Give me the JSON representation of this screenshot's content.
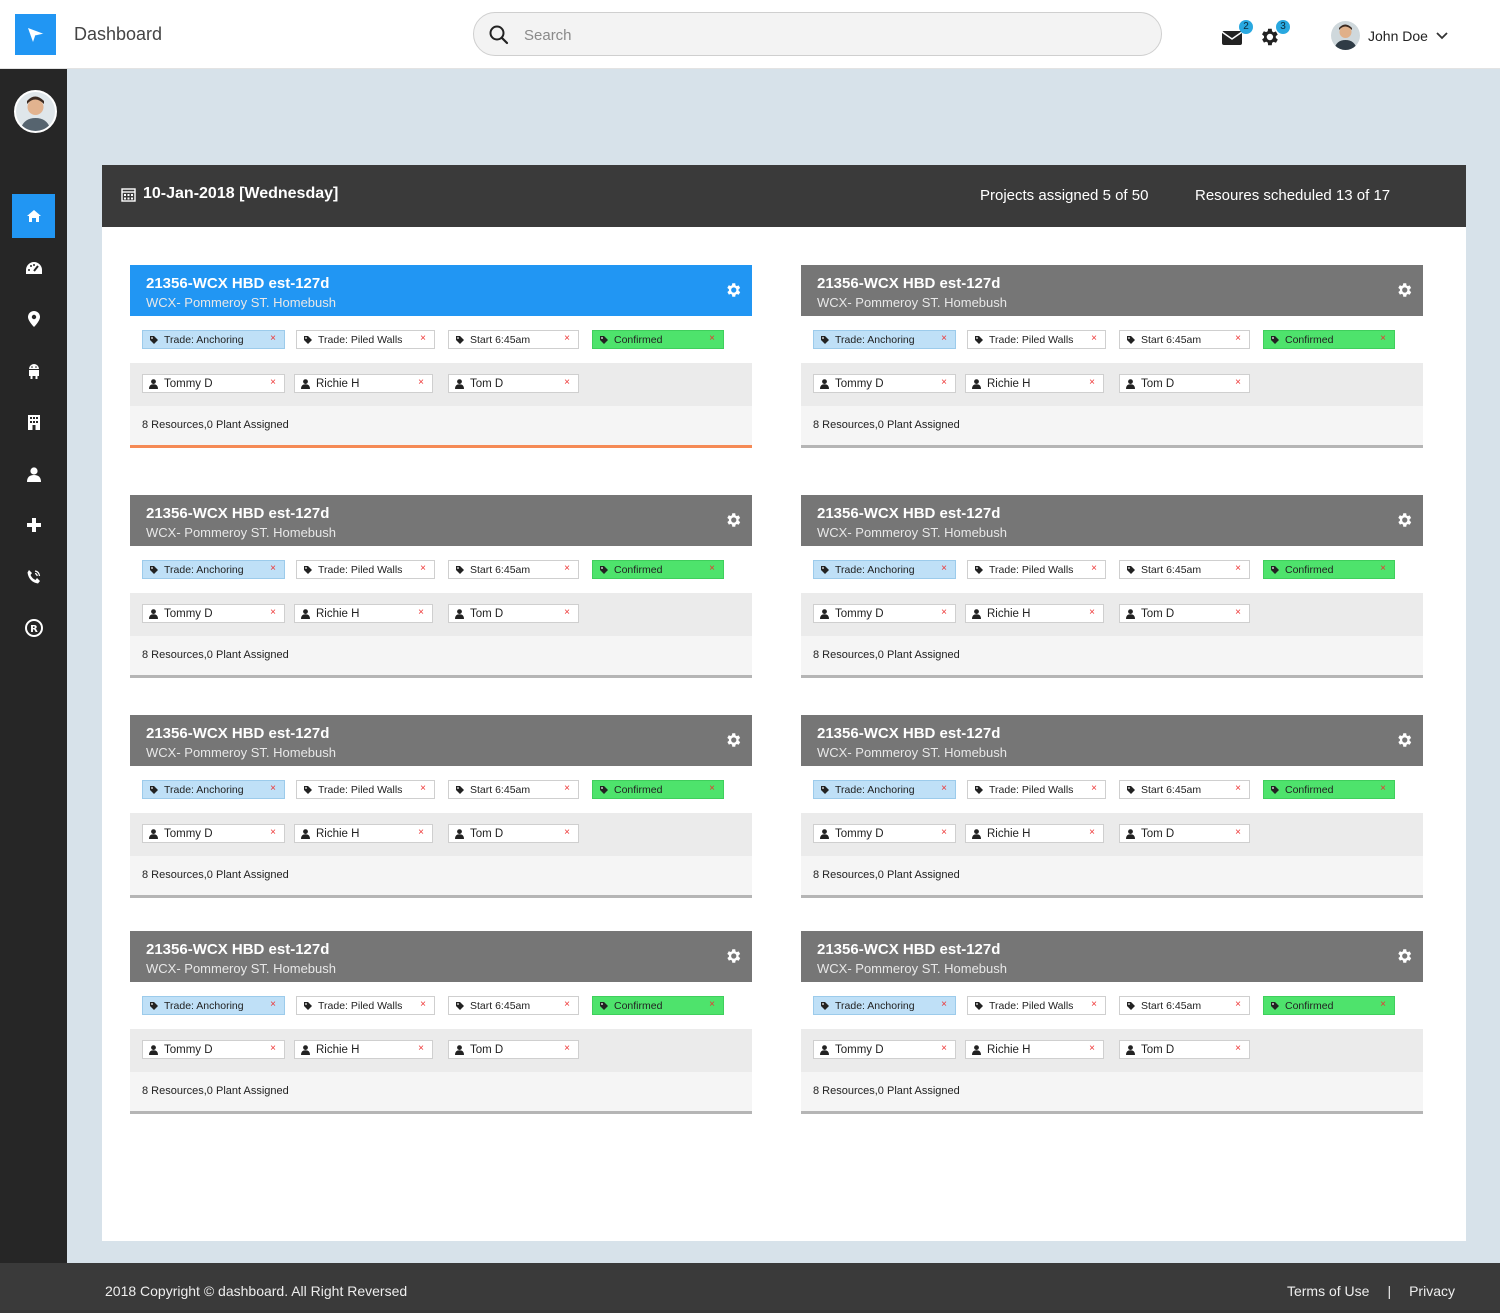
{
  "app": {
    "title": "Dashboard"
  },
  "search": {
    "placeholder": "Search"
  },
  "notifications": {
    "messages_count": "2",
    "settings_count": "3"
  },
  "user": {
    "name": "John Doe"
  },
  "sidebar": {
    "items": [
      {
        "name": "home",
        "icon": "home-icon",
        "active": true
      },
      {
        "name": "dashboard",
        "icon": "speedometer-icon"
      },
      {
        "name": "location",
        "icon": "map-marker-icon"
      },
      {
        "name": "robot",
        "icon": "android-icon"
      },
      {
        "name": "building",
        "icon": "building-icon"
      },
      {
        "name": "user",
        "icon": "user-icon"
      },
      {
        "name": "add",
        "icon": "plus-icon"
      },
      {
        "name": "phone",
        "icon": "phone-volume-icon"
      },
      {
        "name": "registered",
        "icon": "registered-icon"
      }
    ]
  },
  "header": {
    "date": "10-Jan-2018 [Wednesday]",
    "projects_assigned": "Projects assigned 5 of 50",
    "resources_scheduled": "Resoures scheduled 13 of 17"
  },
  "cards": [
    {
      "title": "21356-WCX HBD est-127d",
      "subtitle": "WCX- Pommeroy ST. Homebush",
      "highlight": true,
      "tags": [
        "Trade: Anchoring",
        "Trade: Piled Walls",
        "Start 6:45am",
        "Confirmed"
      ],
      "people": [
        "Tommy D",
        "Richie H",
        "Tom D"
      ],
      "summary": "8 Resources,0 Plant Assigned"
    },
    {
      "title": "21356-WCX HBD est-127d",
      "subtitle": "WCX- Pommeroy ST. Homebush",
      "tags": [
        "Trade: Anchoring",
        "Trade: Piled Walls",
        "Start 6:45am",
        "Confirmed"
      ],
      "people": [
        "Tommy D",
        "Richie H",
        "Tom D"
      ],
      "summary": "8 Resources,0 Plant Assigned"
    },
    {
      "title": "21356-WCX HBD est-127d",
      "subtitle": "WCX- Pommeroy ST. Homebush",
      "tags": [
        "Trade: Anchoring",
        "Trade: Piled Walls",
        "Start 6:45am",
        "Confirmed"
      ],
      "people": [
        "Tommy D",
        "Richie H",
        "Tom D"
      ],
      "summary": "8 Resources,0 Plant Assigned"
    },
    {
      "title": "21356-WCX HBD est-127d",
      "subtitle": "WCX- Pommeroy ST. Homebush",
      "tags": [
        "Trade: Anchoring",
        "Trade: Piled Walls",
        "Start 6:45am",
        "Confirmed"
      ],
      "people": [
        "Tommy D",
        "Richie H",
        "Tom D"
      ],
      "summary": "8 Resources,0 Plant Assigned"
    },
    {
      "title": "21356-WCX HBD est-127d",
      "subtitle": "WCX- Pommeroy ST. Homebush",
      "tags": [
        "Trade: Anchoring",
        "Trade: Piled Walls",
        "Start 6:45am",
        "Confirmed"
      ],
      "people": [
        "Tommy D",
        "Richie H",
        "Tom D"
      ],
      "summary": "8 Resources,0 Plant Assigned"
    },
    {
      "title": "21356-WCX HBD est-127d",
      "subtitle": "WCX- Pommeroy ST. Homebush",
      "tags": [
        "Trade: Anchoring",
        "Trade: Piled Walls",
        "Start 6:45am",
        "Confirmed"
      ],
      "people": [
        "Tommy D",
        "Richie H",
        "Tom D"
      ],
      "summary": "8 Resources,0 Plant Assigned"
    },
    {
      "title": "21356-WCX HBD est-127d",
      "subtitle": "WCX- Pommeroy ST. Homebush",
      "tags": [
        "Trade: Anchoring",
        "Trade: Piled Walls",
        "Start 6:45am",
        "Confirmed"
      ],
      "people": [
        "Tommy D",
        "Richie H",
        "Tom D"
      ],
      "summary": "8 Resources,0 Plant Assigned"
    },
    {
      "title": "21356-WCX HBD est-127d",
      "subtitle": "WCX- Pommeroy ST. Homebush",
      "tags": [
        "Trade: Anchoring",
        "Trade: Piled Walls",
        "Start 6:45am",
        "Confirmed"
      ],
      "people": [
        "Tommy D",
        "Richie H",
        "Tom D"
      ],
      "summary": "8 Resources,0 Plant Assigned"
    }
  ],
  "tag_remove_symbol": "×",
  "colors": {
    "accent": "#2196f3",
    "confirmed": "#4ee36c",
    "trade": "#bfe0f7",
    "card_head": "#767676",
    "highlight_border": "#f58a55"
  },
  "footer": {
    "copyright": "2018 Copyright  © dashboard. All Right Reversed",
    "terms": "Terms of Use",
    "separator": "|",
    "privacy": "Privacy"
  }
}
